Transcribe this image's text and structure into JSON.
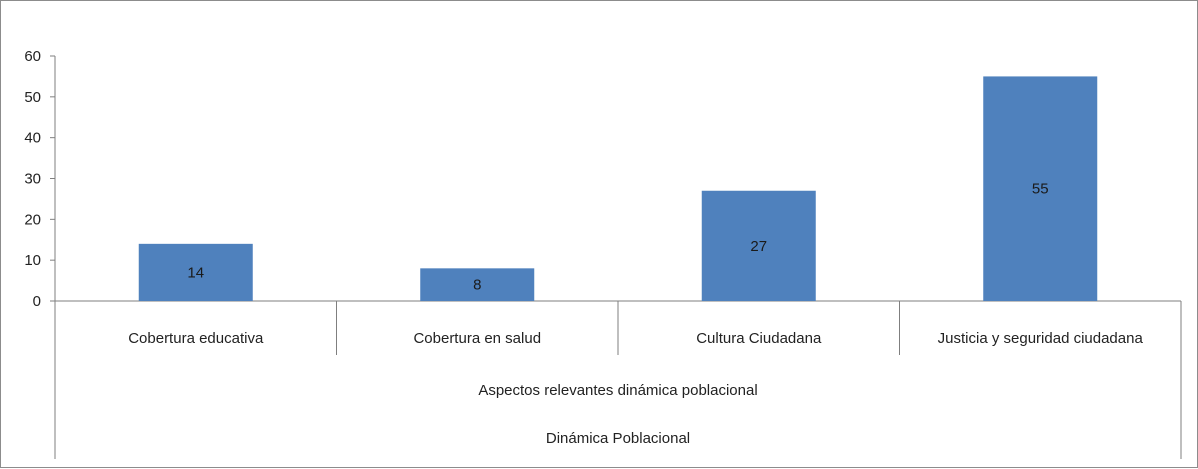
{
  "chart_data": {
    "type": "bar",
    "categories": [
      "Cobertura educativa",
      "Cobertura en salud",
      "Cultura Ciudadana",
      "Justicia y seguridad ciudadana"
    ],
    "values": [
      14,
      8,
      27,
      55
    ],
    "data_labels": [
      "14",
      "8",
      "27",
      "55"
    ],
    "yticks": [
      "0",
      "10",
      "20",
      "30",
      "40",
      "50",
      "60"
    ],
    "ylim": [
      0,
      60
    ],
    "group_labels": [
      "Aspectos relevantes dinámica poblacional",
      "Dinámica Poblacional"
    ],
    "bar_color": "#4f81bd",
    "grid": false,
    "legend": "none"
  }
}
